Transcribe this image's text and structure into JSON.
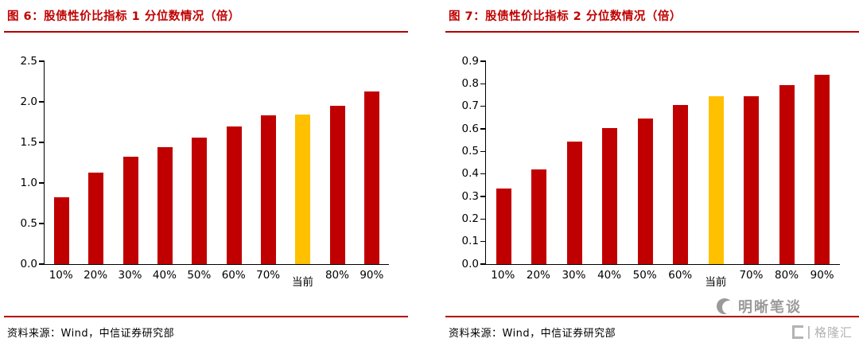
{
  "colors": {
    "bar": "#C00000",
    "highlight": "#FFC000",
    "accent_rule": "#B40000",
    "title_text": "#C00000",
    "axis": "#000000",
    "watermark": "#9a9a9a"
  },
  "panels": [
    {
      "title": "图 6：股债性价比指标 1 分位数情况（倍）",
      "source": "资料来源：Wind，中信证券研究部"
    },
    {
      "title": "图 7：股债性价比指标 2 分位数情况（倍）",
      "source": "资料来源：Wind，中信证券研究部"
    }
  ],
  "watermark": {
    "name": "明晰笔谈",
    "logo": "格隆汇"
  },
  "chart_data": [
    {
      "type": "bar",
      "title": "图 6：股债性价比指标 1 分位数情况（倍）",
      "categories": [
        "10%",
        "20%",
        "30%",
        "40%",
        "50%",
        "60%",
        "70%",
        "当前",
        "80%",
        "90%"
      ],
      "values": [
        0.82,
        1.13,
        1.32,
        1.44,
        1.56,
        1.7,
        1.83,
        1.84,
        1.95,
        2.13
      ],
      "highlight_index": 7,
      "highlight_category": "当前",
      "bar_color": "#C00000",
      "highlight_color": "#FFC000",
      "xlabel": "",
      "ylabel": "",
      "ylim": [
        0,
        2.5
      ],
      "ytick": 0.5,
      "grid": false,
      "legend": false
    },
    {
      "type": "bar",
      "title": "图 7：股债性价比指标 2 分位数情况（倍）",
      "categories": [
        "10%",
        "20%",
        "30%",
        "40%",
        "50%",
        "60%",
        "当前",
        "70%",
        "80%",
        "90%"
      ],
      "values": [
        0.335,
        0.42,
        0.545,
        0.605,
        0.645,
        0.705,
        0.745,
        0.745,
        0.795,
        0.84
      ],
      "highlight_index": 6,
      "highlight_category": "当前",
      "bar_color": "#C00000",
      "highlight_color": "#FFC000",
      "xlabel": "",
      "ylabel": "",
      "ylim": [
        0,
        0.9
      ],
      "ytick": 0.1,
      "grid": false,
      "legend": false
    }
  ]
}
